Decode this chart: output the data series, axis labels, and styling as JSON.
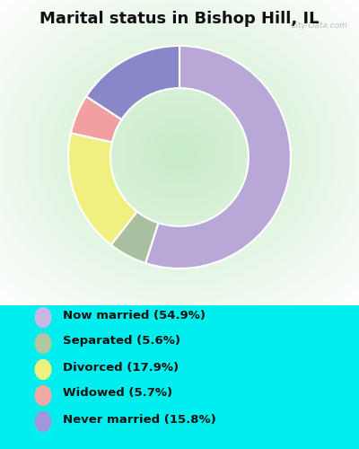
{
  "title": "Marital status in Bishop Hill, IL",
  "title_fontsize": 13,
  "background_color": "#00EEEE",
  "slices": [
    {
      "label": "Now married (54.9%)",
      "value": 54.9,
      "color": "#b8a8d8"
    },
    {
      "label": "Separated (5.6%)",
      "value": 5.6,
      "color": "#a8c0a0"
    },
    {
      "label": "Divorced (17.9%)",
      "value": 17.9,
      "color": "#f0f080"
    },
    {
      "label": "Widowed (5.7%)",
      "value": 5.7,
      "color": "#f0a0a0"
    },
    {
      "label": "Never married (15.8%)",
      "value": 15.8,
      "color": "#8888c8"
    }
  ],
  "legend_colors": [
    "#c8b8e8",
    "#b0c8a0",
    "#f0f080",
    "#f0a8a8",
    "#a098d8"
  ],
  "donut_width": 0.38,
  "watermark": "City-Data.com"
}
